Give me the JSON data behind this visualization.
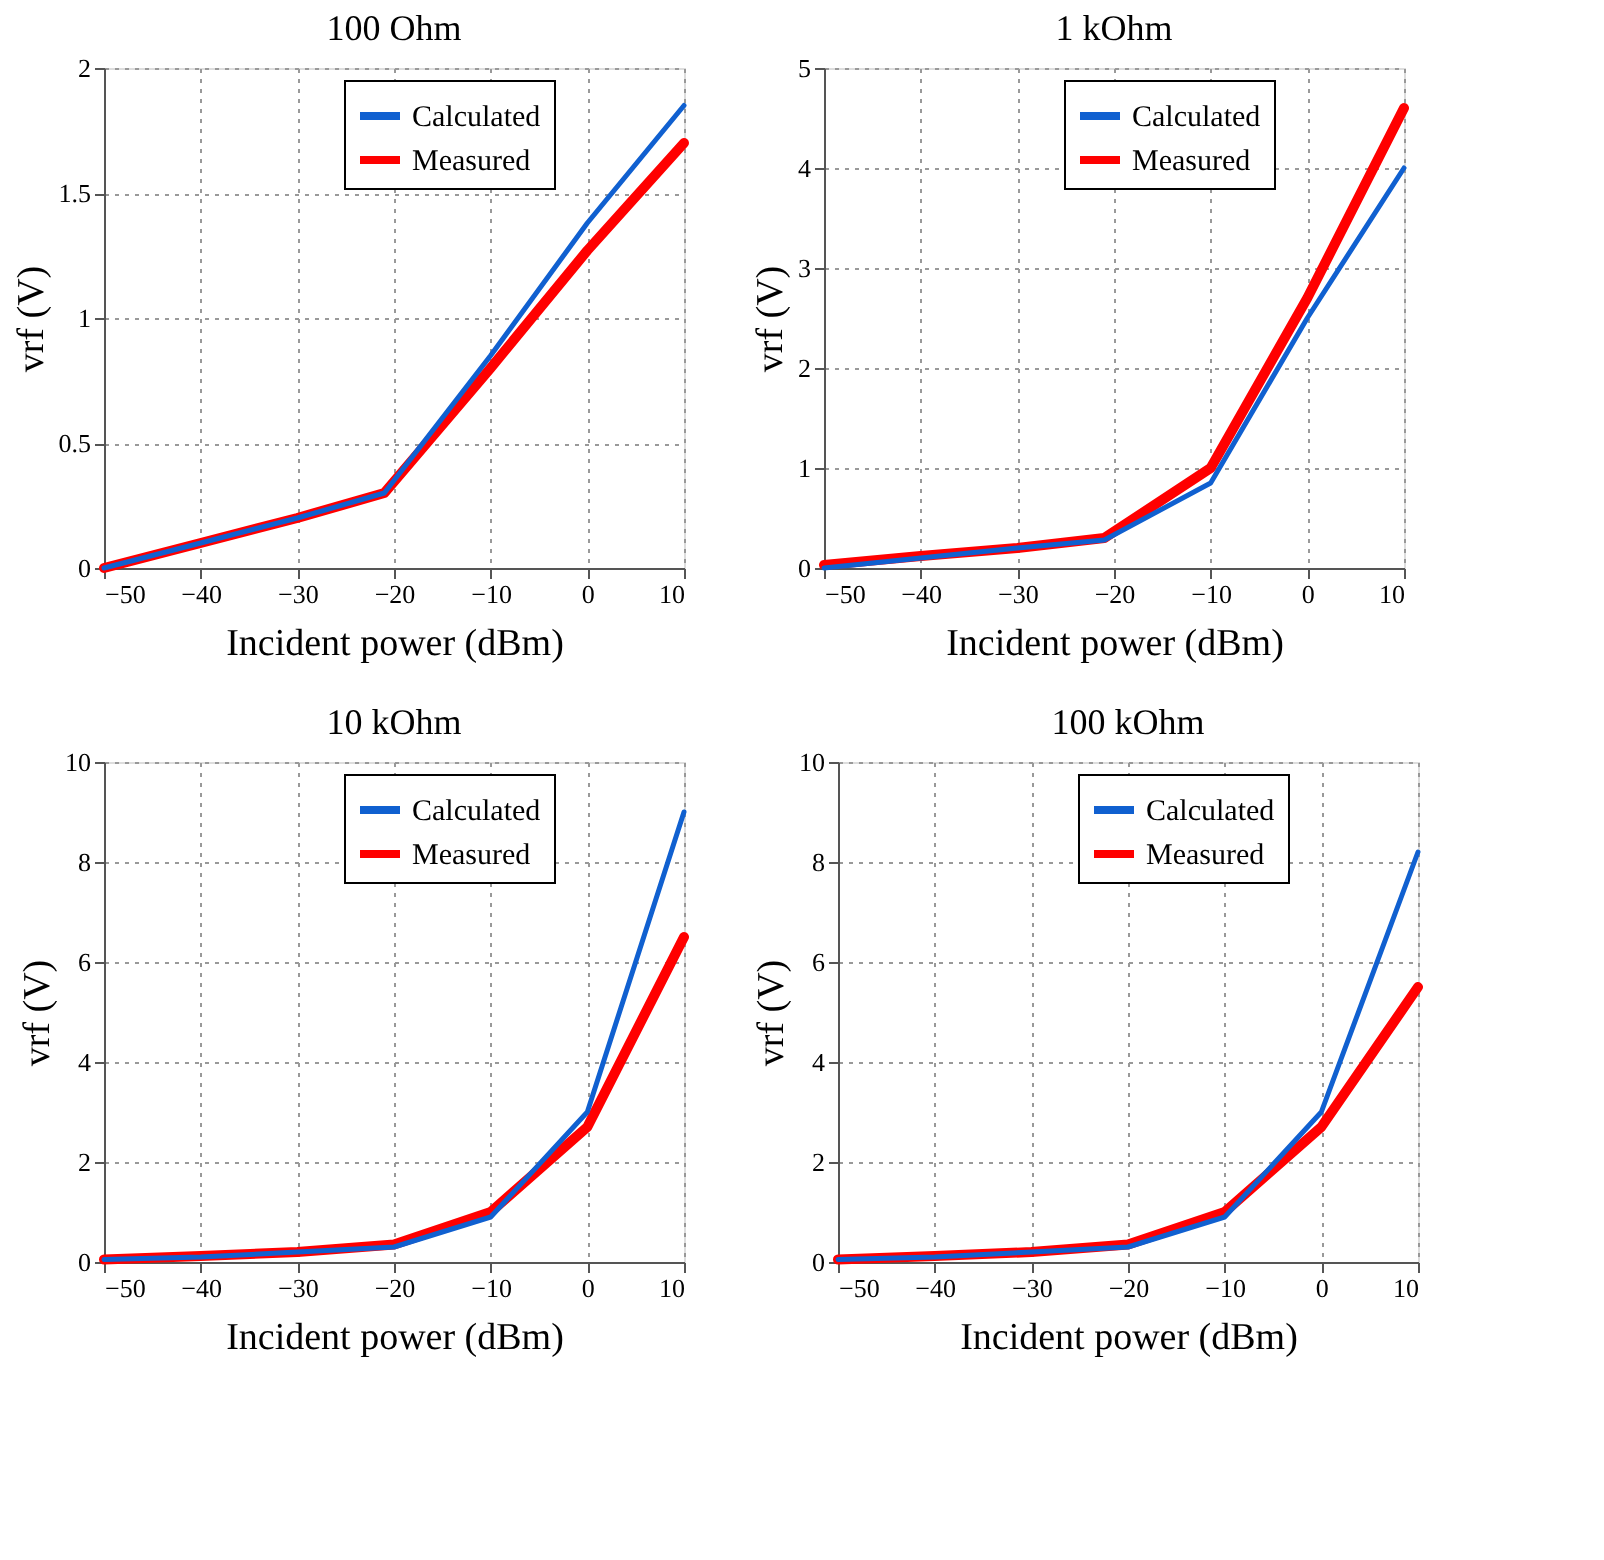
{
  "chart_data": [
    {
      "type": "line",
      "title": "100 Ohm",
      "xlabel": "Incident power (dBm)",
      "ylabel": "vrf (V)",
      "xlim": [
        -50,
        10
      ],
      "xticks": [
        -50,
        -40,
        -30,
        -20,
        -10,
        0,
        10
      ],
      "ylim": [
        0,
        2
      ],
      "yticks": [
        0,
        0.5,
        1,
        1.5,
        2
      ],
      "grid": true,
      "legend": "top right",
      "line_style": "solid",
      "series": [
        {
          "name": "Calculated",
          "color": "#1060d0",
          "x": [
            -50,
            -40,
            -30,
            -21,
            -10,
            0,
            10
          ],
          "values": [
            0,
            0.1,
            0.2,
            0.3,
            0.85,
            1.38,
            1.85
          ]
        },
        {
          "name": "Measured",
          "color": "#ff0000",
          "x": [
            -50,
            -40,
            -30,
            -21,
            -10,
            0,
            10
          ],
          "values": [
            0,
            0.1,
            0.2,
            0.3,
            0.8,
            1.27,
            1.7
          ]
        }
      ]
    },
    {
      "type": "line",
      "title": "1 kOhm",
      "xlabel": "Incident power (dBm)",
      "ylabel": "vrf (V)",
      "xlim": [
        -50,
        10
      ],
      "xticks": [
        -50,
        -40,
        -30,
        -20,
        -10,
        0,
        10
      ],
      "ylim": [
        0,
        5
      ],
      "yticks": [
        0,
        1,
        2,
        3,
        4,
        5
      ],
      "grid": true,
      "legend": "top right",
      "line_style": "solid",
      "series": [
        {
          "name": "Calculated",
          "color": "#1060d0",
          "x": [
            -50,
            -40,
            -30,
            -21,
            -10,
            0,
            10
          ],
          "values": [
            0,
            0.1,
            0.2,
            0.28,
            0.85,
            2.5,
            4.0
          ]
        },
        {
          "name": "Measured",
          "color": "#ff0000",
          "x": [
            -50,
            -40,
            -30,
            -21,
            -10,
            0,
            10
          ],
          "values": [
            0.03,
            0.12,
            0.2,
            0.3,
            1.0,
            2.7,
            4.6
          ]
        }
      ]
    },
    {
      "type": "line",
      "title": "10 kOhm",
      "xlabel": "Incident power (dBm)",
      "ylabel": "vrf (V)",
      "xlim": [
        -50,
        10
      ],
      "xticks": [
        -50,
        -40,
        -30,
        -20,
        -10,
        0,
        10
      ],
      "ylim": [
        0,
        10
      ],
      "yticks": [
        0,
        2,
        4,
        6,
        8,
        10
      ],
      "grid": true,
      "legend": "top right",
      "line_style": "solid",
      "series": [
        {
          "name": "Calculated",
          "color": "#1060d0",
          "x": [
            -50,
            -40,
            -30,
            -20,
            -10,
            0,
            10
          ],
          "values": [
            0.05,
            0.1,
            0.2,
            0.3,
            0.9,
            3.0,
            9.0
          ]
        },
        {
          "name": "Measured",
          "color": "#ff0000",
          "x": [
            -50,
            -40,
            -30,
            -20,
            -10,
            0,
            10
          ],
          "values": [
            0.05,
            0.12,
            0.2,
            0.35,
            1.0,
            2.7,
            6.5
          ]
        }
      ]
    },
    {
      "type": "line",
      "title": "100 kOhm",
      "xlabel": "Incident power (dBm)",
      "ylabel": "vrf (V)",
      "xlim": [
        -50,
        10
      ],
      "xticks": [
        -50,
        -40,
        -30,
        -20,
        -10,
        0,
        10
      ],
      "ylim": [
        0,
        10
      ],
      "yticks": [
        0,
        2,
        4,
        6,
        8,
        10
      ],
      "grid": true,
      "legend": "top right",
      "line_style": "solid",
      "series": [
        {
          "name": "Calculated",
          "color": "#1060d0",
          "x": [
            -50,
            -40,
            -30,
            -20,
            -10,
            0,
            10
          ],
          "values": [
            0.05,
            0.1,
            0.2,
            0.3,
            0.9,
            3.0,
            8.2
          ]
        },
        {
          "name": "Measured",
          "color": "#ff0000",
          "x": [
            -50,
            -40,
            -30,
            -20,
            -10,
            0,
            10
          ],
          "values": [
            0.05,
            0.12,
            0.2,
            0.35,
            1.0,
            2.7,
            5.5
          ]
        }
      ]
    }
  ]
}
